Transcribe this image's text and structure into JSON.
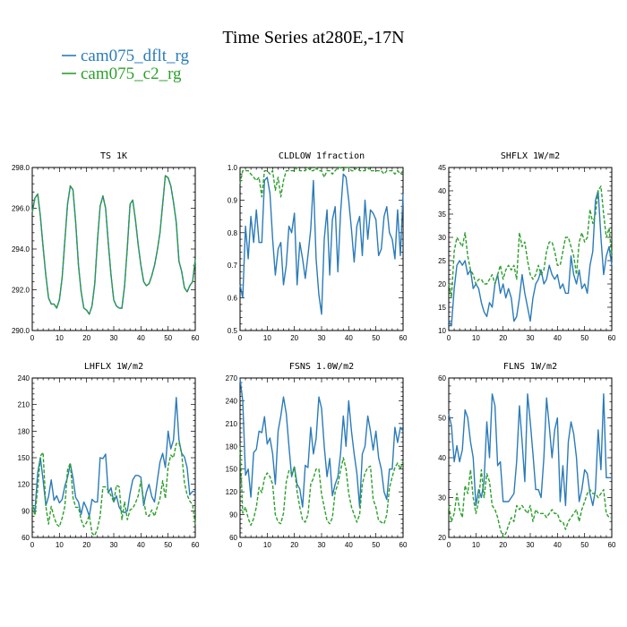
{
  "chart_data": {
    "type": "line",
    "title": "Time Series at280E,-17N",
    "series": [
      {
        "name": "cam075_dflt_rg",
        "color": "#2b7bb9",
        "dash": "solid"
      },
      {
        "name": "cam075_c2_rg",
        "color": "#2ca02c",
        "dash": "dashed"
      }
    ],
    "x": [
      0,
      1,
      2,
      3,
      4,
      5,
      6,
      7,
      8,
      9,
      10,
      11,
      12,
      13,
      14,
      15,
      16,
      17,
      18,
      19,
      20,
      21,
      22,
      23,
      24,
      25,
      26,
      27,
      28,
      29,
      30,
      31,
      32,
      33,
      34,
      35,
      36,
      37,
      38,
      39,
      40,
      41,
      42,
      43,
      44,
      45,
      46,
      47,
      48,
      49,
      50,
      51,
      52,
      53,
      54,
      55,
      56,
      57,
      58,
      59,
      60
    ],
    "legend_position": "top-left",
    "panels": [
      {
        "var": "TS",
        "units": "1K",
        "xlim": [
          0,
          60
        ],
        "ylim": [
          290,
          298
        ],
        "xticks": [
          "0",
          "10",
          "20",
          "30",
          "40",
          "50",
          "60"
        ],
        "yticks": [
          "290.0",
          "292.0",
          "294.0",
          "296.0",
          "298.0"
        ],
        "series": [
          {
            "name": "cam075_dflt_rg",
            "values": [
              295.8,
              296.5,
              296.7,
              295.6,
              294.1,
              292.7,
              291.6,
              291.3,
              291.3,
              291.1,
              291.5,
              292.6,
              294.4,
              296.2,
              297.1,
              296.9,
              295.3,
              293.2,
              291.9,
              291.1,
              291.0,
              290.8,
              291.2,
              292.3,
              294.4,
              296.1,
              296.6,
              296.0,
              294.3,
              292.7,
              291.5,
              291.2,
              291.1,
              291.1,
              292.2,
              294.1,
              296.2,
              296.4,
              295.4,
              294.2,
              293.2,
              292.4,
              292.2,
              292.3,
              292.7,
              293.2,
              293.9,
              294.8,
              296.2,
              297.6,
              297.5,
              297.1,
              296.3,
              295.3,
              293.4,
              292.9,
              292.1,
              291.9,
              292.2,
              292.4,
              293.5
            ]
          },
          {
            "name": "cam075_c2_rg",
            "values": [
              295.8,
              296.5,
              296.7,
              295.6,
              294.1,
              292.7,
              291.6,
              291.3,
              291.3,
              291.1,
              291.5,
              292.6,
              294.4,
              296.2,
              297.1,
              296.9,
              295.3,
              293.2,
              291.9,
              291.1,
              291.0,
              290.8,
              291.2,
              292.3,
              294.4,
              296.1,
              296.6,
              296.0,
              294.3,
              292.7,
              291.5,
              291.2,
              291.1,
              291.1,
              292.2,
              294.1,
              296.2,
              296.4,
              295.4,
              294.2,
              293.2,
              292.4,
              292.2,
              292.3,
              292.7,
              293.2,
              293.9,
              294.8,
              296.2,
              297.6,
              297.5,
              297.1,
              296.3,
              295.3,
              293.4,
              292.9,
              292.1,
              291.9,
              292.2,
              292.4,
              293.5
            ]
          }
        ]
      },
      {
        "var": "CLDLOW",
        "units": "1fraction",
        "xlim": [
          0,
          60
        ],
        "ylim": [
          0.5,
          1.0
        ],
        "xticks": [
          "0",
          "10",
          "20",
          "30",
          "40",
          "50",
          "60"
        ],
        "yticks": [
          "0.5",
          "0.6",
          "0.7",
          "0.8",
          "0.9",
          "1.0"
        ],
        "series": [
          {
            "name": "cam075_dflt_rg",
            "values": [
              0.64,
              0.6,
              0.82,
              0.72,
              0.85,
              0.77,
              0.87,
              0.77,
              0.77,
              0.96,
              0.97,
              0.92,
              0.78,
              0.67,
              0.75,
              0.77,
              0.64,
              0.7,
              0.82,
              0.8,
              0.86,
              0.64,
              0.77,
              0.72,
              0.66,
              0.73,
              0.81,
              0.96,
              0.72,
              0.61,
              0.55,
              0.78,
              0.87,
              0.67,
              0.84,
              0.88,
              0.68,
              0.86,
              0.98,
              0.97,
              0.9,
              0.81,
              0.71,
              0.82,
              0.85,
              0.73,
              0.9,
              0.78,
              0.87,
              0.86,
              0.84,
              0.73,
              0.75,
              0.85,
              0.88,
              0.8,
              0.78,
              0.72,
              0.87,
              0.73,
              0.92
            ]
          },
          {
            "name": "cam075_c2_rg",
            "values": [
              0.95,
              0.99,
              0.99,
              0.99,
              0.98,
              0.97,
              0.96,
              0.97,
              0.91,
              0.99,
              0.99,
              0.98,
              0.99,
              0.93,
              0.97,
              0.91,
              0.96,
              0.99,
              0.99,
              0.99,
              0.99,
              1.0,
              0.99,
              0.99,
              0.99,
              1.0,
              0.99,
              0.99,
              1.0,
              0.99,
              0.99,
              0.97,
              0.99,
              0.99,
              0.98,
              0.99,
              1.0,
              1.0,
              0.99,
              1.0,
              1.0,
              0.99,
              0.99,
              1.0,
              0.99,
              0.99,
              0.99,
              1.0,
              0.99,
              0.99,
              0.99,
              0.99,
              0.99,
              0.98,
              0.99,
              0.99,
              0.99,
              0.98,
              0.99,
              0.98,
              0.99
            ]
          }
        ]
      },
      {
        "var": "SHFLX",
        "units": "1W/m2",
        "xlim": [
          0,
          60
        ],
        "ylim": [
          10,
          45
        ],
        "xticks": [
          "0",
          "10",
          "20",
          "30",
          "40",
          "50",
          "60"
        ],
        "yticks": [
          "10",
          "15",
          "20",
          "25",
          "30",
          "35",
          "40",
          "45"
        ],
        "series": [
          {
            "name": "cam075_dflt_rg",
            "values": [
              12,
              11,
              19,
              24,
              25,
              24,
              25,
              22,
              23,
              19,
              20,
              19,
              16,
              14,
              13,
              16,
              15,
              20,
              22,
              18,
              20,
              17,
              19,
              17,
              12,
              13,
              17,
              22,
              18,
              15,
              12,
              17,
              20,
              21,
              23,
              20,
              21,
              24,
              22,
              21,
              22,
              19,
              20,
              18,
              18,
              26,
              22,
              20,
              23,
              19,
              20,
              18,
              24,
              27,
              38,
              40,
              30,
              22,
              26,
              28,
              24
            ]
          },
          {
            "name": "cam075_c2_rg",
            "values": [
              20,
              17,
              27,
              30,
              29,
              28,
              31,
              26,
              23,
              22,
              20,
              21,
              21,
              20,
              20,
              21,
              22,
              20,
              22,
              24,
              21,
              23,
              24,
              23,
              24,
              21,
              31,
              28,
              29,
              25,
              22,
              21,
              22,
              24,
              22,
              23,
              27,
              29,
              29,
              27,
              24,
              24,
              27,
              30,
              30,
              28,
              26,
              22,
              29,
              31,
              29,
              30,
              36,
              33,
              35,
              40,
              41,
              35,
              30,
              32,
              26
            ]
          }
        ]
      },
      {
        "var": "LHFLX",
        "units": "1W/m2",
        "xlim": [
          0,
          60
        ],
        "ylim": [
          60,
          240
        ],
        "xticks": [
          "0",
          "10",
          "20",
          "30",
          "40",
          "50",
          "60"
        ],
        "yticks": [
          "60",
          "90",
          "120",
          "150",
          "180",
          "210",
          "240"
        ],
        "series": [
          {
            "name": "cam075_dflt_rg",
            "values": [
              96,
              90,
              133,
              150,
              125,
              96,
              106,
              125,
              102,
              107,
              99,
              103,
              118,
              128,
              143,
              127,
              105,
              100,
              86,
              100,
              93,
              84,
              103,
              100,
              100,
              150,
              149,
              154,
              110,
              116,
              100,
              107,
              94,
              89,
              88,
              90,
              110,
              125,
              130,
              130,
              128,
              96,
              111,
              120,
              106,
              100,
              123,
              145,
              155,
              139,
              180,
              160,
              170,
              218,
              170,
              155,
              151,
              139,
              108,
              112,
              112
            ]
          },
          {
            "name": "cam075_c2_rg",
            "values": [
              96,
              85,
              115,
              152,
              156,
              95,
              75,
              95,
              83,
              75,
              72,
              82,
              95,
              136,
              144,
              105,
              94,
              94,
              80,
              72,
              77,
              85,
              65,
              62,
              70,
              84,
              117,
              117,
              113,
              107,
              100,
              119,
              117,
              80,
              100,
              80,
              91,
              93,
              99,
              107,
              124,
              102,
              85,
              84,
              91,
              84,
              94,
              104,
              124,
              104,
              140,
              153,
              150,
              166,
              167,
              155,
              122,
              108,
              101,
              97,
              74
            ]
          }
        ]
      },
      {
        "var": "FSNS",
        "units": "1.0W/m2",
        "xlim": [
          0,
          60
        ],
        "ylim": [
          60,
          270
        ],
        "xticks": [
          "0",
          "10",
          "20",
          "30",
          "40",
          "50",
          "60"
        ],
        "yticks": [
          "60",
          "90",
          "120",
          "150",
          "180",
          "210",
          "240",
          "270"
        ],
        "series": [
          {
            "name": "cam075_dflt_rg",
            "values": [
              269,
              240,
              142,
              150,
              113,
              172,
              176,
              200,
              198,
              219,
              183,
              191,
              170,
              130,
              200,
              220,
              245,
              223,
              180,
              140,
              153,
              130,
              124,
              100,
              155,
              152,
              205,
              170,
              190,
              245,
              230,
              180,
              140,
              164,
              115,
              130,
              140,
              170,
              220,
              180,
              240,
              200,
              170,
              145,
              100,
              170,
              180,
              220,
              200,
              175,
              200,
              165,
              150,
              120,
              110,
              150,
              150,
              205,
              185,
              205,
              200
            ]
          },
          {
            "name": "cam075_c2_rg",
            "values": [
              180,
              92,
              100,
              85,
              76,
              85,
              100,
              126,
              119,
              138,
              145,
              140,
              130,
              90,
              80,
              78,
              92,
              133,
              148,
              144,
              153,
              120,
              100,
              83,
              80,
              90,
              130,
              138,
              150,
              150,
              117,
              100,
              82,
              78,
              86,
              120,
              130,
              148,
              165,
              150,
              118,
              100,
              90,
              80,
              90,
              130,
              145,
              152,
              154,
              110,
              100,
              82,
              80,
              78,
              90,
              125,
              140,
              152,
              158,
              150,
              161
            ]
          }
        ]
      },
      {
        "var": "FLNS",
        "units": "1W/m2",
        "xlim": [
          0,
          60
        ],
        "ylim": [
          20,
          60
        ],
        "xticks": [
          "0",
          "10",
          "20",
          "30",
          "40",
          "50",
          "60"
        ],
        "yticks": [
          "20",
          "30",
          "40",
          "50",
          "60"
        ],
        "series": [
          {
            "name": "cam075_dflt_rg",
            "values": [
              51,
              48,
              39,
              43,
              39,
              42,
              52,
              50,
              44,
              40,
              28,
              32,
              30,
              34,
              49,
              40,
              56,
              53,
              38,
              39,
              29,
              29,
              29,
              30,
              31,
              39,
              53,
              44,
              34,
              56,
              49,
              41,
              32,
              32,
              30,
              40,
              55,
              48,
              40,
              47,
              50,
              29,
              38,
              28,
              44,
              49,
              46,
              40,
              29,
              32,
              37,
              36,
              31,
              28,
              32,
              47,
              37,
              56,
              35,
              35,
              35
            ]
          },
          {
            "name": "cam075_c2_rg",
            "values": [
              28,
              24,
              26,
              31,
              27,
              25,
              33,
              31,
              37,
              30,
              26,
              29,
              37,
              30,
              36,
              34,
              28,
              27,
              25,
              22,
              20,
              21,
              23,
              25,
              24,
              28,
              27,
              28,
              27,
              26,
              28,
              24,
              27,
              26,
              26,
              26,
              25,
              26,
              27,
              26,
              26,
              24,
              24,
              22,
              24,
              25,
              26,
              27,
              24,
              27,
              29,
              31,
              32,
              31,
              31,
              30,
              31,
              32,
              26,
              25,
              25
            ]
          }
        ]
      }
    ]
  }
}
